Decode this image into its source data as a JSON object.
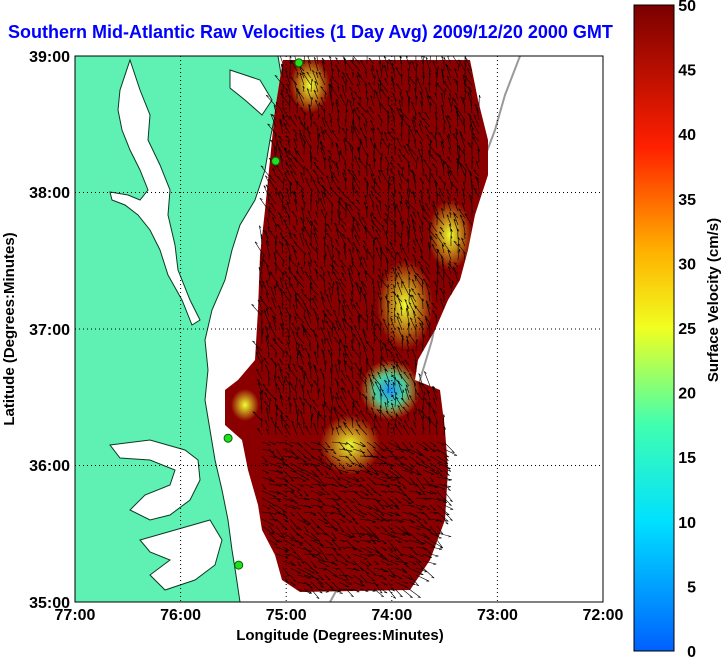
{
  "title": "Southern Mid-Atlantic Raw Velocities (1 Day Avg) 2009/12/20 2000 GMT",
  "xaxis": {
    "label": "Longitude (Degrees:Minutes)",
    "ticks": [
      "77:00",
      "76:00",
      "75:00",
      "74:00",
      "73:00",
      "72:00"
    ]
  },
  "yaxis": {
    "label": "Latitude (Degrees:Minutes)",
    "ticks": [
      "39:00",
      "38:00",
      "37:00",
      "36:00",
      "35:00"
    ]
  },
  "colorbar": {
    "label": "Surface Velocity (cm/s)",
    "ticks": [
      "0",
      "5",
      "10",
      "15",
      "20",
      "25",
      "30",
      "35",
      "40",
      "45",
      "50"
    ]
  },
  "colors": {
    "land": "#5ff0b4",
    "water": "#ffffff",
    "title": "#0000ff",
    "velocity_high": "#8b0000",
    "velocity_low": "#0080ff"
  },
  "map_extent": {
    "lon_range": [
      -77,
      -72
    ],
    "lat_range": [
      35,
      39
    ],
    "velocity_range_cm_s": [
      0,
      50
    ]
  },
  "stations": [
    {
      "lon": -74.88,
      "lat": 38.95
    },
    {
      "lon": -75.1,
      "lat": 38.23
    },
    {
      "lon": -75.55,
      "lat": 36.2
    },
    {
      "lon": -75.45,
      "lat": 35.27
    }
  ]
}
